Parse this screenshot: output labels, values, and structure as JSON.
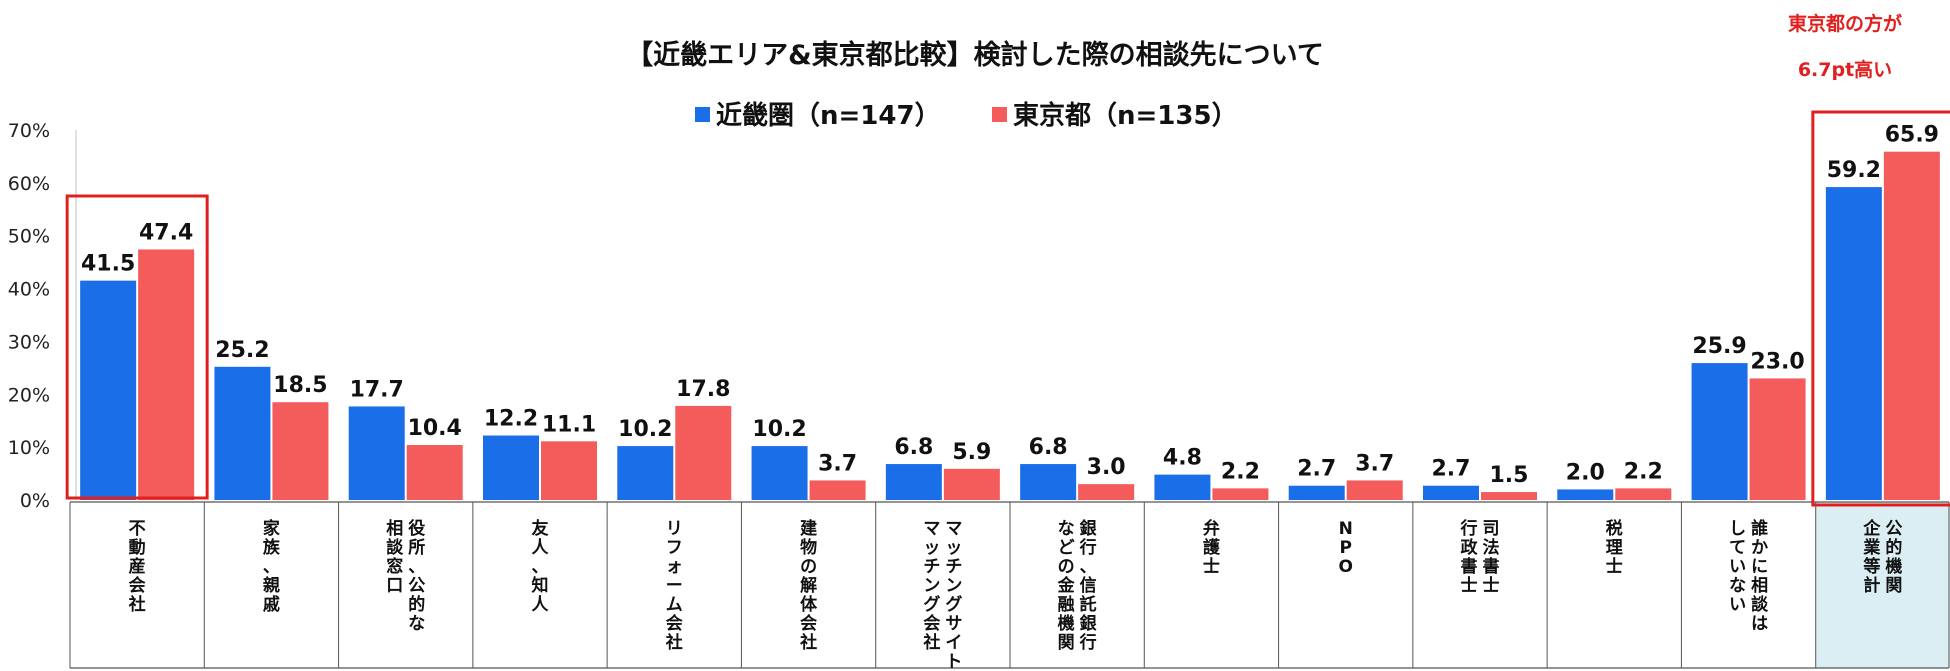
{
  "chart_data": {
    "type": "bar",
    "title": "【近畿エリア&東京都比較】検討した際の相談先について",
    "ylim": [
      0,
      70
    ],
    "yticks": [
      "0%",
      "10%",
      "20%",
      "30%",
      "40%",
      "50%",
      "60%",
      "70%"
    ],
    "grid": false,
    "legend_position": "top-center",
    "categories": [
      [
        "不動産会社"
      ],
      [
        "家族、親戚"
      ],
      [
        "役所、公的な",
        "相談窓口"
      ],
      [
        "友人、知人"
      ],
      [
        "リフォーム会社"
      ],
      [
        "建物の解体会社"
      ],
      [
        "マッチングサイト",
        "マッチング会社"
      ],
      [
        "銀行、信託銀行",
        "などの金融機関"
      ],
      [
        "弁護士"
      ],
      [
        "NPO"
      ],
      [
        "司法書士",
        "行政書士"
      ],
      [
        "税理士"
      ],
      [
        "誰かに相談は",
        "していない"
      ],
      [
        "公的機関",
        "企業等計"
      ]
    ],
    "series": [
      {
        "name": "近畿圏（n=147）",
        "color": "#1a6fe8",
        "values": [
          41.5,
          25.2,
          17.7,
          12.2,
          10.2,
          10.2,
          6.8,
          6.8,
          4.8,
          2.7,
          2.7,
          2.0,
          25.9,
          59.2
        ],
        "labels": [
          "41.5",
          "25.2",
          "17.7",
          "12.2",
          "10.2",
          "10.2",
          "6.8",
          "6.8",
          "4.8",
          "2.7",
          "2.7",
          "2.0",
          "25.9",
          "59.2"
        ]
      },
      {
        "name": "東京都（n=135）",
        "color": "#f45b5b",
        "values": [
          47.4,
          18.5,
          10.4,
          11.1,
          17.8,
          3.7,
          5.9,
          3.0,
          2.2,
          3.7,
          1.5,
          2.2,
          23.0,
          65.9
        ],
        "labels": [
          "47.4",
          "18.5",
          "10.4",
          "11.1",
          "17.8",
          "3.7",
          "5.9",
          "3.0",
          "2.2",
          "3.7",
          "1.5",
          "2.2",
          "23.0",
          "65.9"
        ]
      }
    ],
    "highlighted_categories": [
      "不動産会社",
      "公的機関企業等計"
    ],
    "shaded_category": "公的機関企業等計",
    "annotation": [
      "東京都の方が",
      "6.7pt高い"
    ],
    "highlight_color": "#e0201f",
    "shade_color": "#daeef3"
  }
}
